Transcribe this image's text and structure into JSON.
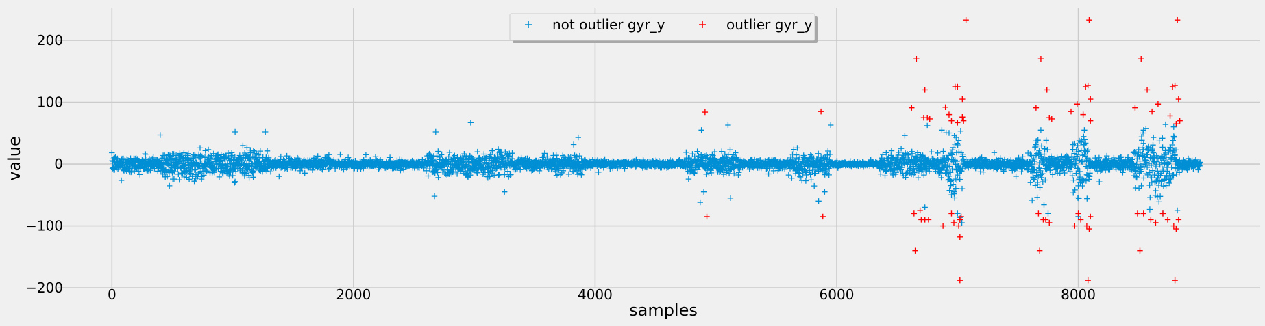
{
  "chart_data": {
    "type": "scatter",
    "title": "",
    "xlabel": "samples",
    "ylabel": "value",
    "xlim": [
      -450,
      9500
    ],
    "ylim": [
      -200,
      252
    ],
    "x_ticks": [
      0,
      2000,
      4000,
      6000,
      8000
    ],
    "y_ticks": [
      -200,
      -100,
      0,
      100,
      200
    ],
    "x_tick_labels": [
      "0",
      "2000",
      "4000",
      "6000",
      "8000"
    ],
    "y_tick_labels": [
      "−200",
      "−100",
      "0",
      "100",
      "200"
    ],
    "grid": true,
    "legend_placement": "top-center",
    "marker": "+",
    "colors": {
      "not_outlier": "#008fd5",
      "outlier": "#ff0000",
      "background": "#f0f0f0",
      "grid": "#cbcbcb"
    },
    "series": [
      {
        "name": "not outlier gyr_y",
        "color": "#008fd5",
        "n_points": 9009,
        "activity_segments": [
          {
            "x": [
              0,
              400
            ],
            "amp": 12
          },
          {
            "x": [
              400,
              1300
            ],
            "amp": 18
          },
          {
            "x": [
              1300,
              1800
            ],
            "amp": 8
          },
          {
            "x": [
              1800,
              2600
            ],
            "amp": 6
          },
          {
            "x": [
              2600,
              3300
            ],
            "amp": 18
          },
          {
            "x": [
              3300,
              3650
            ],
            "amp": 8
          },
          {
            "x": [
              3650,
              3900
            ],
            "amp": 15
          },
          {
            "x": [
              3900,
              4750
            ],
            "amp": 5
          },
          {
            "x": [
              4750,
              5200
            ],
            "amp": 15
          },
          {
            "x": [
              5200,
              5600
            ],
            "amp": 7
          },
          {
            "x": [
              5600,
              5950
            ],
            "amp": 18
          },
          {
            "x": [
              5950,
              6350
            ],
            "amp": 3
          },
          {
            "x": [
              6350,
              6900
            ],
            "amp": 16
          },
          {
            "x": [
              6900,
              7050
            ],
            "amp": 45
          },
          {
            "x": [
              7050,
              7600
            ],
            "amp": 8
          },
          {
            "x": [
              7600,
              7750
            ],
            "amp": 35
          },
          {
            "x": [
              7750,
              7950
            ],
            "amp": 12
          },
          {
            "x": [
              7950,
              8100
            ],
            "amp": 45
          },
          {
            "x": [
              8100,
              8450
            ],
            "amp": 10
          },
          {
            "x": [
              8450,
              8820
            ],
            "amp": 40
          },
          {
            "x": [
              8820,
              9010
            ],
            "amp": 7
          }
        ],
        "highlight_points": [
          [
            400,
            47
          ],
          [
            1020,
            52
          ],
          [
            1270,
            52
          ],
          [
            2970,
            67
          ],
          [
            2680,
            52
          ],
          [
            3860,
            43
          ],
          [
            2670,
            -52
          ],
          [
            3250,
            -45
          ],
          [
            4880,
            55
          ],
          [
            4900,
            -45
          ],
          [
            4870,
            -62
          ],
          [
            5100,
            63
          ],
          [
            5120,
            -55
          ],
          [
            5950,
            63
          ],
          [
            5900,
            -45
          ],
          [
            5850,
            -60
          ],
          [
            6750,
            62
          ],
          [
            6870,
            55
          ],
          [
            6730,
            -70
          ],
          [
            7000,
            -80
          ],
          [
            7690,
            55
          ],
          [
            7750,
            -80
          ],
          [
            8050,
            55
          ],
          [
            8000,
            -85
          ],
          [
            8540,
            55
          ],
          [
            8790,
            60
          ],
          [
            8820,
            -75
          ],
          [
            8700,
            -80
          ]
        ]
      },
      {
        "name": "outlier gyr_y",
        "color": "#ff0000",
        "points": [
          [
            4910,
            84
          ],
          [
            4925,
            -85
          ],
          [
            5870,
            85
          ],
          [
            5885,
            -85
          ],
          [
            6620,
            91
          ],
          [
            6660,
            170
          ],
          [
            6650,
            -140
          ],
          [
            6640,
            -80
          ],
          [
            6690,
            -75
          ],
          [
            6700,
            -90
          ],
          [
            6720,
            75
          ],
          [
            6730,
            120
          ],
          [
            6750,
            75
          ],
          [
            6770,
            73
          ],
          [
            6760,
            -90
          ],
          [
            6730,
            -90
          ],
          [
            6880,
            -100
          ],
          [
            6900,
            92
          ],
          [
            6930,
            80
          ],
          [
            6950,
            -80
          ],
          [
            6950,
            70
          ],
          [
            6970,
            -95
          ],
          [
            6980,
            125
          ],
          [
            7000,
            125
          ],
          [
            7000,
            67
          ],
          [
            7010,
            -100
          ],
          [
            7020,
            -90
          ],
          [
            7020,
            -118
          ],
          [
            7030,
            -85
          ],
          [
            7040,
            105
          ],
          [
            7040,
            76
          ],
          [
            7050,
            70
          ],
          [
            7020,
            -188
          ],
          [
            7070,
            233
          ],
          [
            7650,
            91
          ],
          [
            7690,
            170
          ],
          [
            7680,
            -140
          ],
          [
            7670,
            -80
          ],
          [
            7710,
            -90
          ],
          [
            7730,
            -90
          ],
          [
            7740,
            120
          ],
          [
            7760,
            75
          ],
          [
            7780,
            73
          ],
          [
            7760,
            -95
          ],
          [
            7940,
            85
          ],
          [
            7990,
            97
          ],
          [
            7970,
            -100
          ],
          [
            8000,
            -80
          ],
          [
            8020,
            -90
          ],
          [
            8040,
            80
          ],
          [
            8060,
            125
          ],
          [
            8070,
            -100
          ],
          [
            8080,
            127
          ],
          [
            8090,
            -105
          ],
          [
            8100,
            105
          ],
          [
            8100,
            -85
          ],
          [
            8100,
            70
          ],
          [
            8080,
            -188
          ],
          [
            8090,
            233
          ],
          [
            8470,
            91
          ],
          [
            8520,
            170
          ],
          [
            8510,
            -140
          ],
          [
            8490,
            -80
          ],
          [
            8540,
            -80
          ],
          [
            8570,
            120
          ],
          [
            8600,
            -90
          ],
          [
            8610,
            85
          ],
          [
            8640,
            -95
          ],
          [
            8660,
            97
          ],
          [
            8700,
            -80
          ],
          [
            8740,
            -90
          ],
          [
            8760,
            78
          ],
          [
            8780,
            125
          ],
          [
            8790,
            -100
          ],
          [
            8800,
            127
          ],
          [
            8810,
            -105
          ],
          [
            8810,
            65
          ],
          [
            8830,
            105
          ],
          [
            8830,
            -90
          ],
          [
            8840,
            70
          ],
          [
            8800,
            -188
          ],
          [
            8820,
            233
          ]
        ]
      }
    ]
  }
}
